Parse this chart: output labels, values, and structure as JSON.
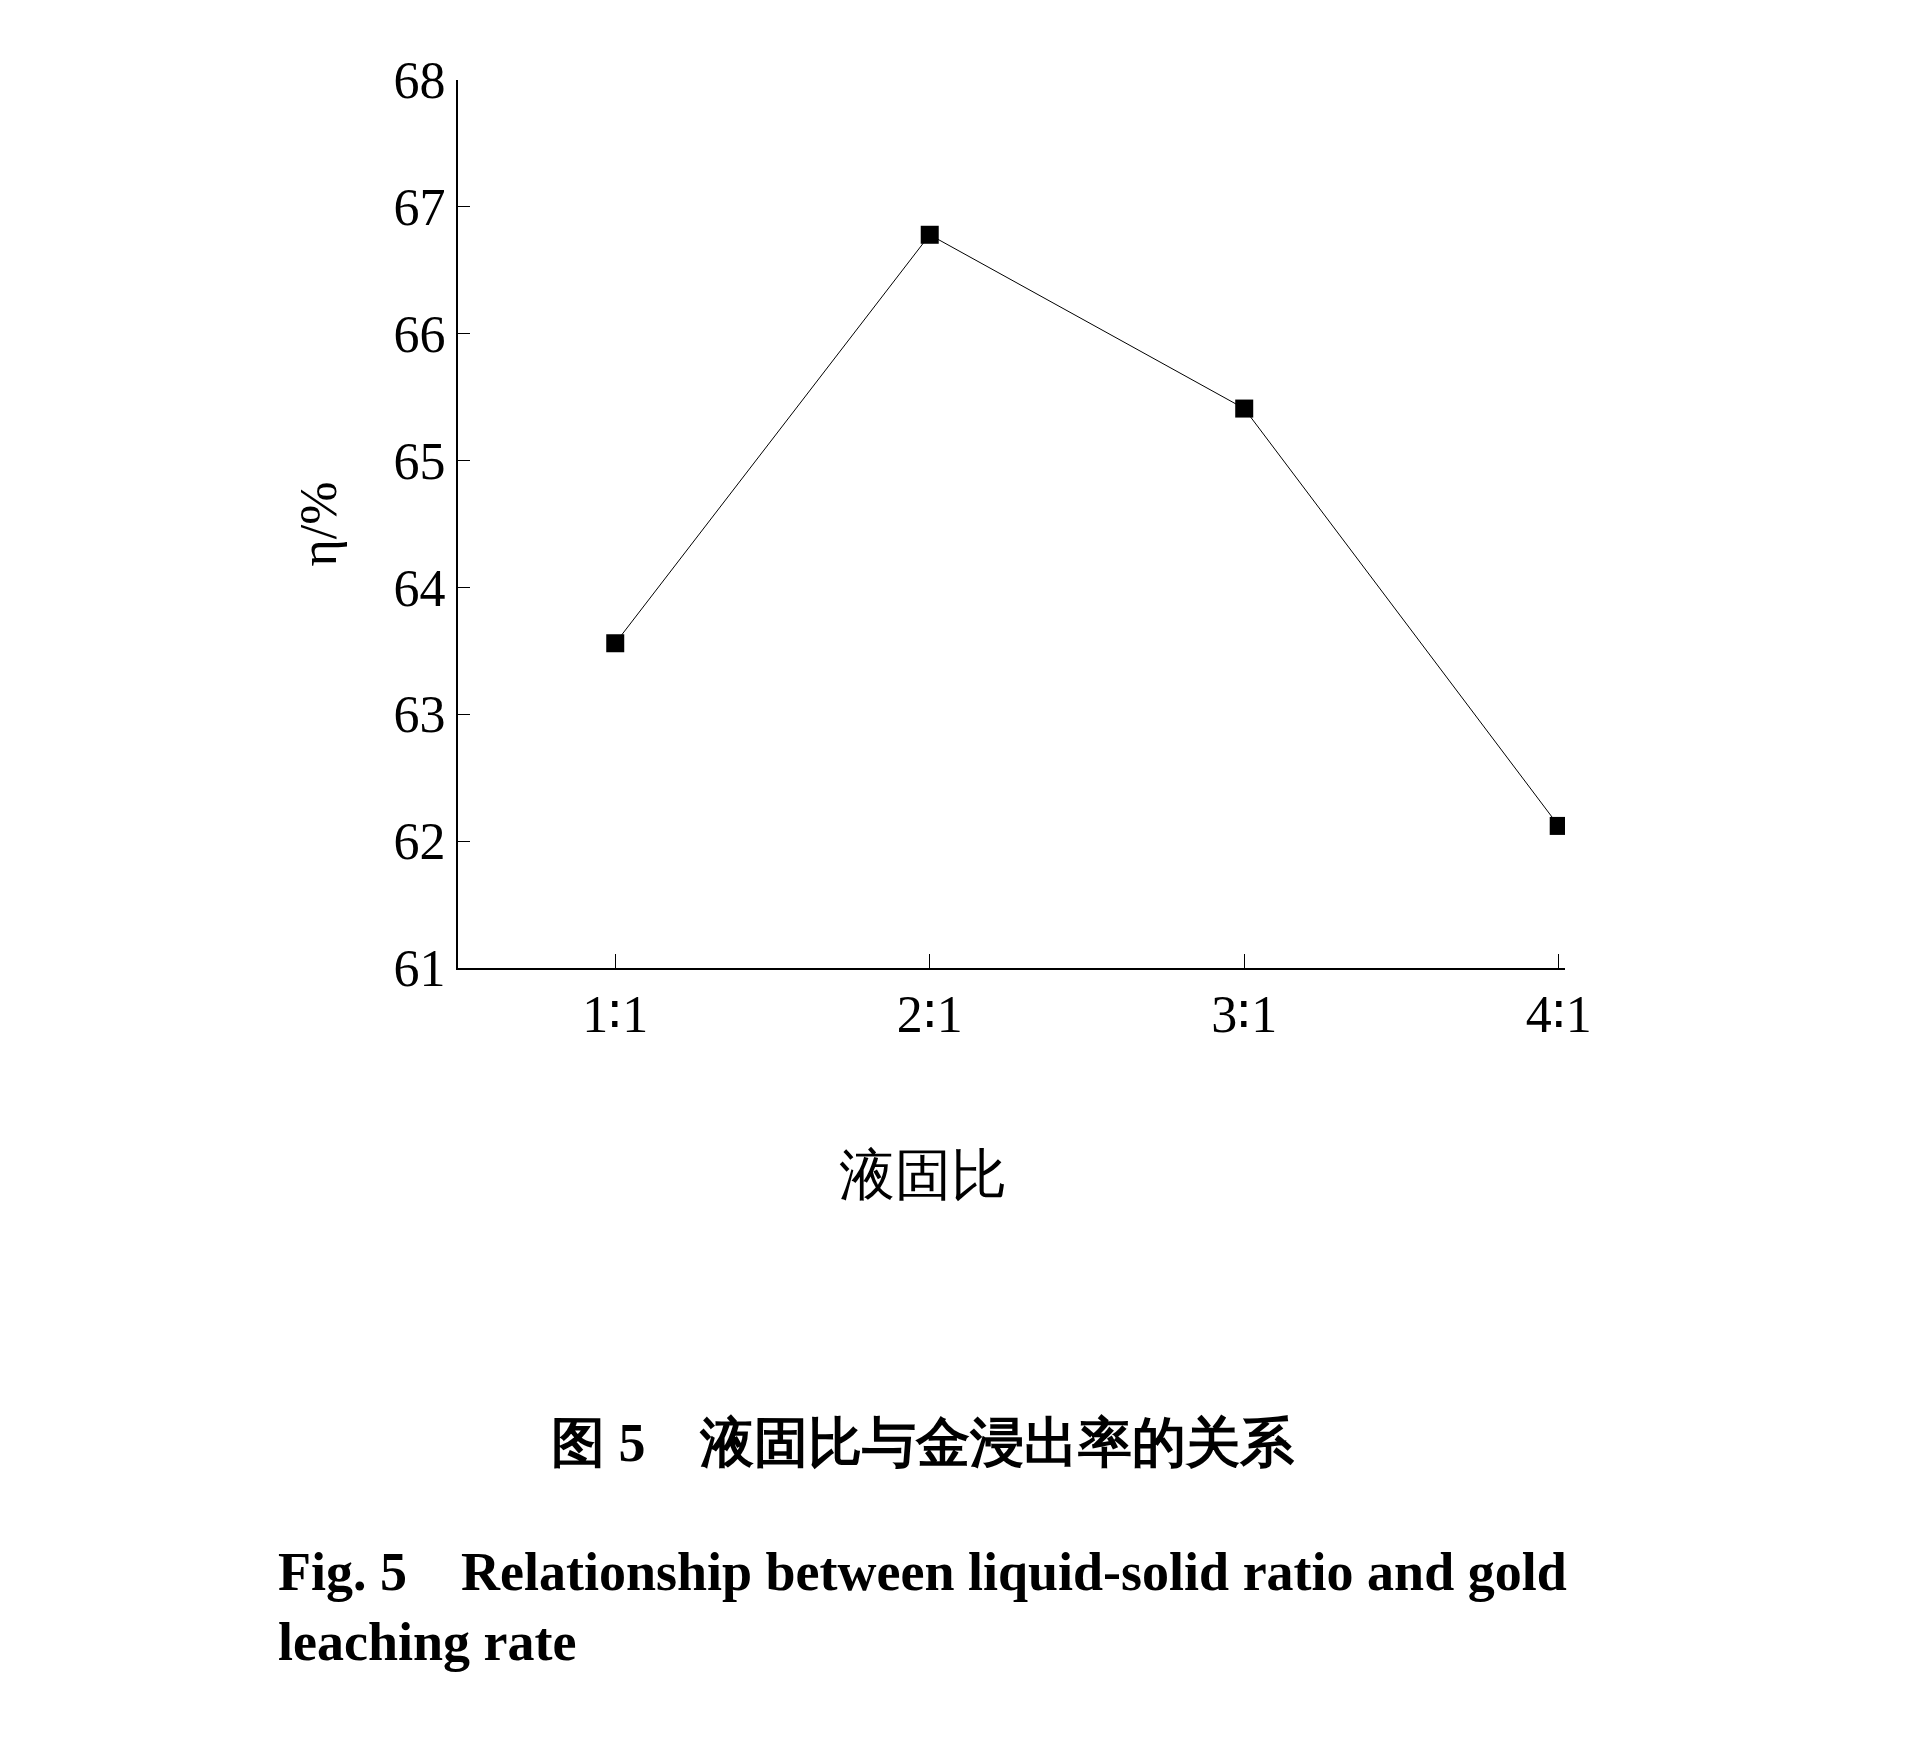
{
  "chart_data": {
    "type": "line",
    "xlabel": "液固比",
    "ylabel": "η/%",
    "categories": [
      "1∶1",
      "2∶1",
      "3∶1",
      "4∶1"
    ],
    "series": [
      {
        "color": "#000000",
        "values": [
          63.56,
          66.78,
          65.41,
          62.12
        ]
      }
    ],
    "ylim": [
      61,
      68
    ],
    "yticks": [
      61,
      62,
      63,
      64,
      65,
      66,
      67,
      68
    ],
    "marker": "square",
    "line_style": "solid",
    "legend": false,
    "annotations": [
      "图 5　液固比与金浸出率的关系",
      "Fig. 5　Relationship between liquid-solid ratio and gold leaching rate"
    ]
  }
}
